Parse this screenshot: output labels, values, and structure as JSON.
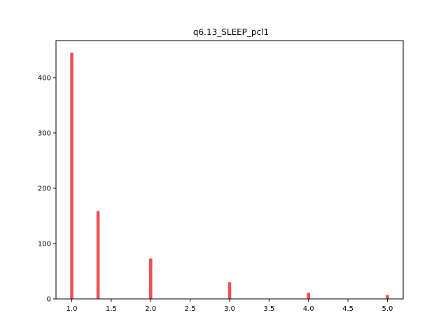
{
  "chart_data": {
    "type": "bar",
    "title": "q6.13_SLEEP_pcl1",
    "xlabel": "",
    "ylabel": "",
    "x": [
      1.0,
      1.333,
      2.0,
      3.0,
      4.0,
      5.0
    ],
    "values": [
      445,
      159,
      73,
      30,
      11,
      7
    ],
    "bin_width": 0.04,
    "xlim": [
      0.8,
      5.2
    ],
    "ylim": [
      0,
      467
    ],
    "x_ticks": [
      1.0,
      1.5,
      2.0,
      2.5,
      3.0,
      3.5,
      4.0,
      4.5,
      5.0
    ],
    "x_tick_labels": [
      "1.0",
      "1.5",
      "2.0",
      "2.5",
      "3.0",
      "3.5",
      "4.0",
      "4.5",
      "5.0"
    ],
    "y_ticks": [
      0,
      100,
      200,
      300,
      400
    ],
    "y_tick_labels": [
      "0",
      "100",
      "200",
      "300",
      "400"
    ],
    "bar_color": "#f05050",
    "grid": false,
    "legend": "none"
  }
}
